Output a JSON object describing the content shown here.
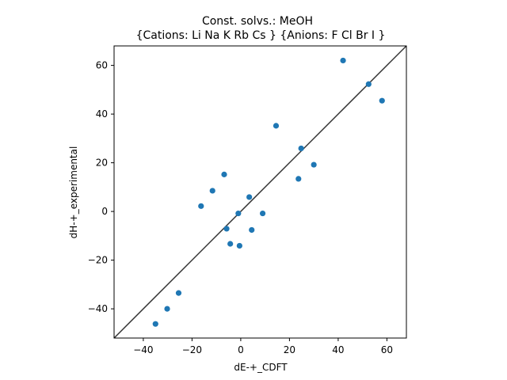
{
  "chart_data": {
    "type": "scatter",
    "title_line1": "Const. solvs.: MeOH",
    "title_line2": "{Cations: Li Na K Rb Cs } {Anions: F Cl Br I }",
    "xlabel": "dE-+_CDFT",
    "ylabel": "dH-+_experimental",
    "xlim": [
      -52,
      68
    ],
    "ylim": [
      -52,
      68
    ],
    "xticks": [
      -40,
      -20,
      0,
      20,
      40,
      60
    ],
    "yticks": [
      -40,
      -20,
      0,
      20,
      40,
      60
    ],
    "xtick_labels": [
      "−40",
      "−20",
      "0",
      "20",
      "40",
      "60"
    ],
    "ytick_labels": [
      "−40",
      "−20",
      "0",
      "20",
      "40",
      "60"
    ],
    "grid": false,
    "reference_line": "y = x",
    "colors": {
      "points": "#1f77b4",
      "reference_line": "#333333",
      "axes": "#000000"
    },
    "points": [
      {
        "x": 42.0,
        "y": 62.0
      },
      {
        "x": 52.5,
        "y": 52.3
      },
      {
        "x": 58.0,
        "y": 45.5
      },
      {
        "x": 14.5,
        "y": 35.2
      },
      {
        "x": 24.8,
        "y": 25.9
      },
      {
        "x": 30.0,
        "y": 19.2
      },
      {
        "x": 23.7,
        "y": 13.4
      },
      {
        "x": -6.8,
        "y": 15.2
      },
      {
        "x": -11.6,
        "y": 8.5
      },
      {
        "x": 3.5,
        "y": 5.9
      },
      {
        "x": -16.3,
        "y": 2.2
      },
      {
        "x": -1.0,
        "y": -0.8
      },
      {
        "x": 9.0,
        "y": -0.8
      },
      {
        "x": -5.8,
        "y": -7.1
      },
      {
        "x": 4.5,
        "y": -7.6
      },
      {
        "x": -4.3,
        "y": -13.3
      },
      {
        "x": -0.5,
        "y": -14.1
      },
      {
        "x": -25.5,
        "y": -33.5
      },
      {
        "x": -30.2,
        "y": -40.0
      },
      {
        "x": -35.0,
        "y": -46.2
      }
    ]
  }
}
